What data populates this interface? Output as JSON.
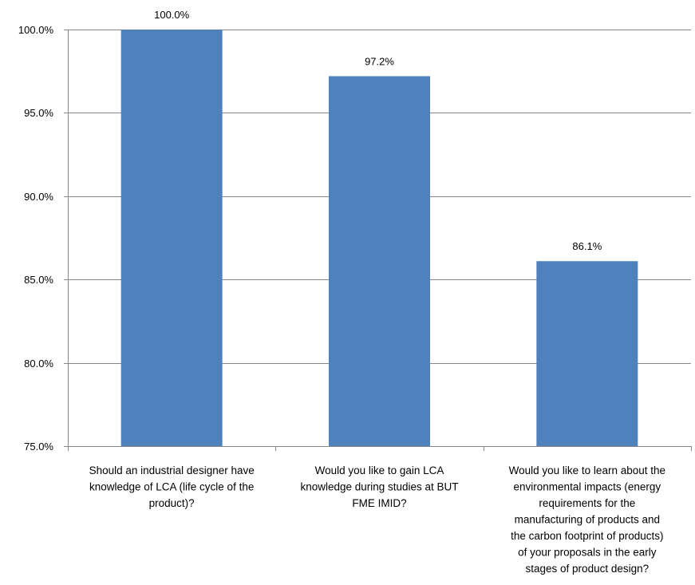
{
  "chart_data": {
    "type": "bar",
    "categories": [
      "Should an industrial designer have knowledge of LCA (life cycle of the product)?",
      "Would you like to gain LCA knowledge during studies at BUT FME IMID?",
      "Would you like to learn about the environmental impacts (energy requirements for the manufacturing of products and the carbon footprint of products) of your proposals in the early stages of product design?"
    ],
    "category_lines": [
      [
        "Should an  industrial designer have",
        "knowledge of LCA (life cycle of the",
        "product)?"
      ],
      [
        "Would you like to gain  LCA",
        "knowledge during studies at BUT",
        "FME IMID?"
      ],
      [
        "Would you like to learn about the",
        "environmental impacts (energy",
        "requirements for the",
        "manufacturing of products and",
        "the carbon footprint of products)",
        "of your proposals in the early",
        "stages of product design?"
      ]
    ],
    "values": [
      100.0,
      97.2,
      86.1
    ],
    "data_labels": [
      "100.0%",
      "97.2%",
      "86.1%"
    ],
    "ylim": [
      75.0,
      100.0
    ],
    "yticks": [
      75.0,
      80.0,
      85.0,
      90.0,
      95.0,
      100.0
    ],
    "ytick_labels": [
      "75.0%",
      "80.0%",
      "85.0%",
      "90.0%",
      "95.0%",
      "100.0%"
    ],
    "title": "",
    "xlabel": "",
    "ylabel": "",
    "grid": "horizontal",
    "legend": "none",
    "colors": {
      "bar": "#4F81BD",
      "grid": "#868686",
      "axis": "#868686",
      "text": "#000000"
    }
  }
}
